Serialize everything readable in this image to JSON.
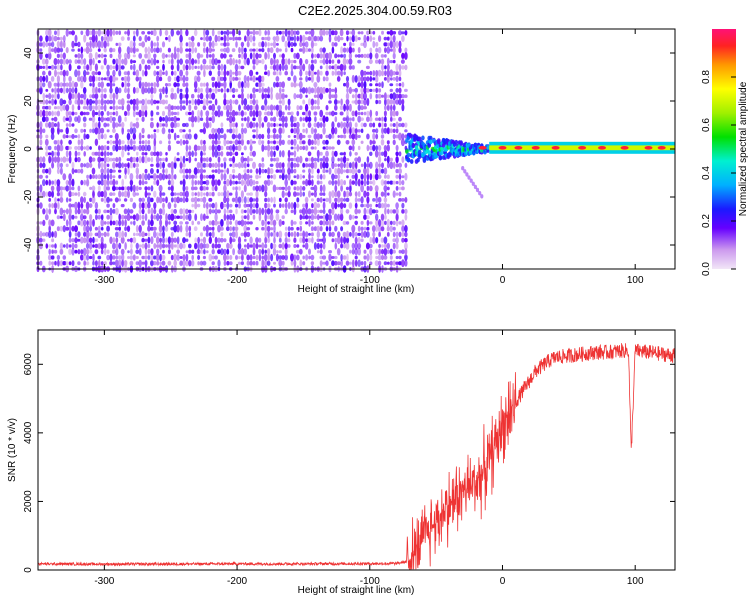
{
  "figure": {
    "title": "C2E2.2025.304.00.59.R03"
  },
  "chart_data": [
    {
      "type": "heatmap",
      "title": "C2E2.2025.304.00.59.R03",
      "xlabel": "Height of straight line (km)",
      "ylabel": "Frequency (Hz)",
      "xlim": [
        -350,
        130
      ],
      "ylim": [
        -50,
        50
      ],
      "xticks": [
        -300,
        -200,
        -100,
        0,
        100
      ],
      "yticks": [
        -40,
        -20,
        0,
        20,
        40
      ],
      "description_regions": [
        {
          "x_range": [
            -350,
            -72
          ],
          "y_range": [
            -50,
            50
          ],
          "kind": "broadband noise",
          "amplitude_range": [
            0.0,
            0.2
          ]
        },
        {
          "x_range": [
            -72,
            -10
          ],
          "y_range": [
            -8,
            8
          ],
          "kind": "onset burst",
          "amplitude_range": [
            0.2,
            0.6
          ]
        },
        {
          "x_range": [
            -10,
            130
          ],
          "y_range": [
            -2,
            3
          ],
          "kind": "narrow tone",
          "amplitude_range": [
            0.2,
            1.0
          ]
        }
      ],
      "colorbar": {
        "label": "Normalized spectral amplitude",
        "range": [
          0.0,
          1.0
        ],
        "ticks": [
          0.0,
          0.2,
          0.4,
          0.6,
          0.8
        ]
      }
    },
    {
      "type": "line",
      "xlabel": "Height of straight line (km)",
      "ylabel": "SNR (10 * v/v)",
      "xlim": [
        -350,
        130
      ],
      "ylim": [
        0,
        7000
      ],
      "xticks": [
        -300,
        -200,
        -100,
        0,
        100
      ],
      "yticks": [
        0,
        2000,
        4000,
        6000
      ],
      "color": "#ee3333",
      "series": [
        {
          "name": "SNR",
          "x": [
            -350,
            -300,
            -250,
            -200,
            -150,
            -100,
            -80,
            -72,
            -65,
            -60,
            -55,
            -50,
            -45,
            -40,
            -35,
            -30,
            -25,
            -20,
            -15,
            -10,
            -5,
            0,
            5,
            10,
            15,
            20,
            25,
            30,
            35,
            40,
            50,
            60,
            70,
            80,
            90,
            95,
            97,
            100,
            110,
            120,
            130
          ],
          "values": [
            180,
            170,
            175,
            180,
            180,
            185,
            190,
            250,
            500,
            900,
            1200,
            1400,
            1700,
            1900,
            2100,
            2300,
            2400,
            2600,
            2800,
            3200,
            3700,
            4200,
            4600,
            4900,
            5200,
            5500,
            5800,
            5950,
            6100,
            6200,
            6250,
            6300,
            6350,
            6350,
            6400,
            6400,
            3400,
            6400,
            6350,
            6300,
            6250
          ]
        }
      ]
    }
  ]
}
